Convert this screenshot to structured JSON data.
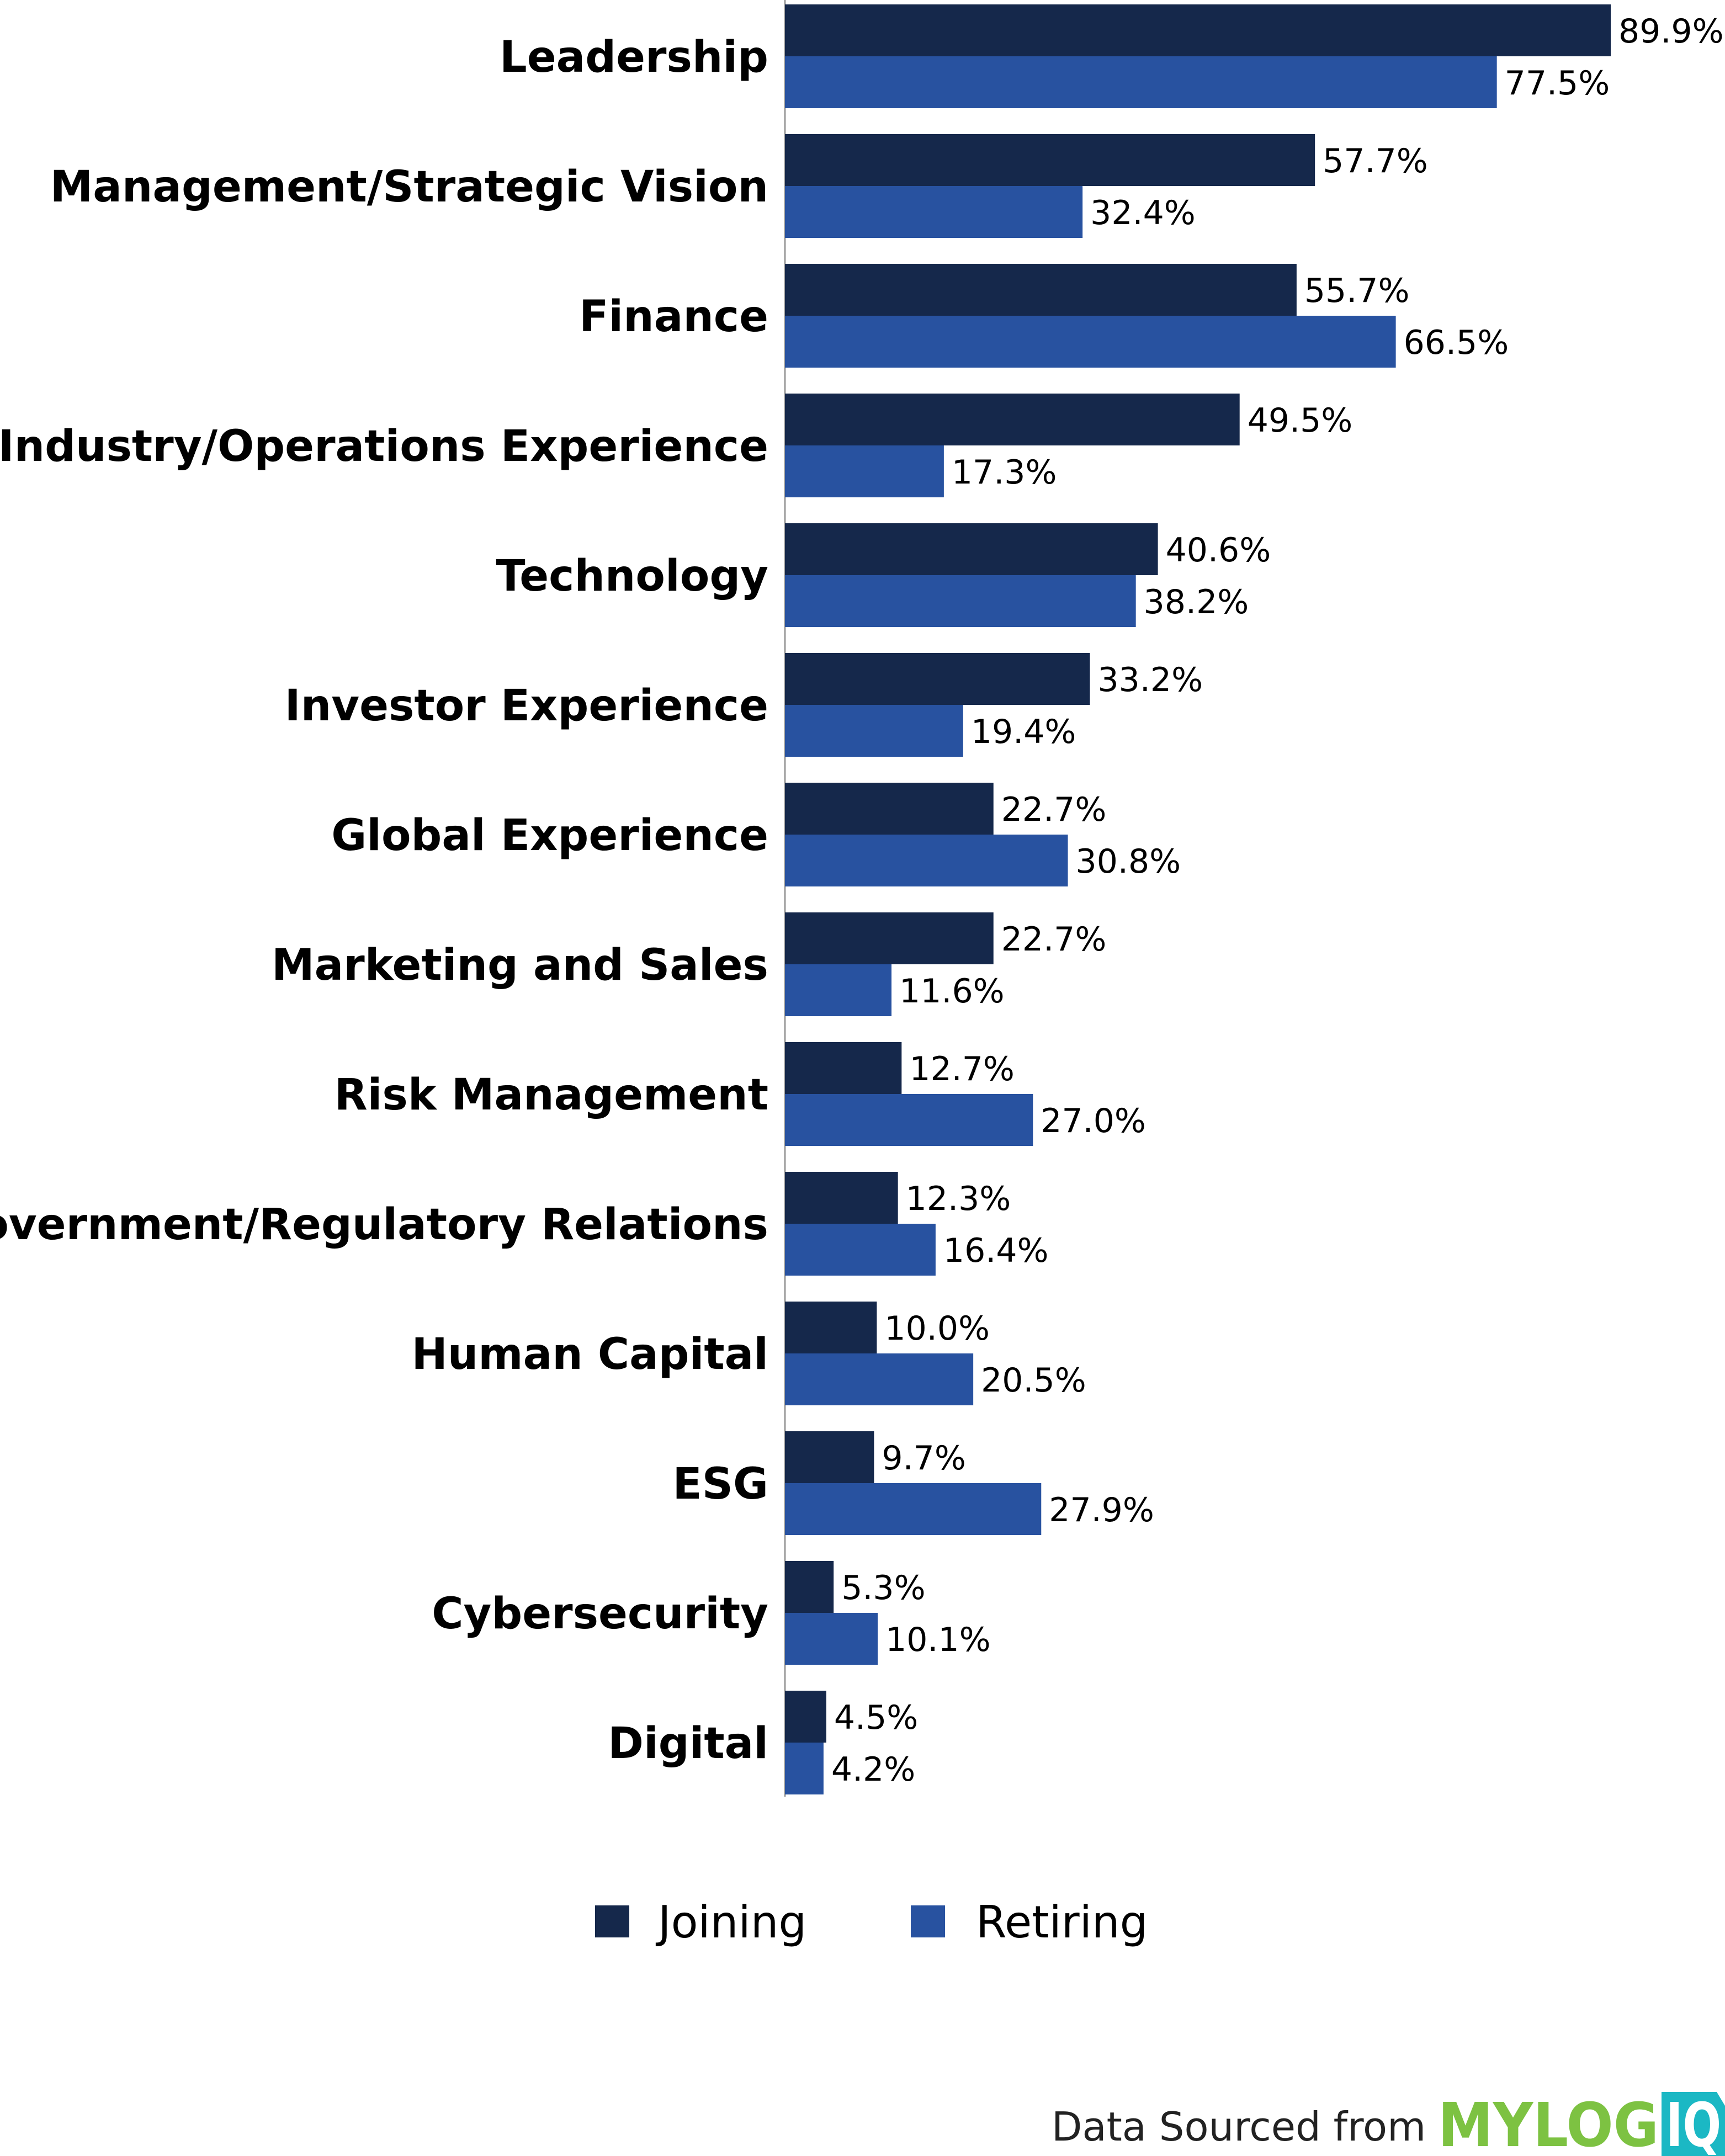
{
  "chart_data": {
    "type": "bar",
    "orientation": "horizontal",
    "categories": [
      "Leadership",
      "Management/Strategic Vision",
      "Finance",
      "Industry/Operations Experience",
      "Technology",
      "Investor Experience",
      "Global Experience",
      "Marketing and Sales",
      "Risk Management",
      "Government/Regulatory Relations",
      "Human Capital",
      "ESG",
      "Cybersecurity",
      "Digital"
    ],
    "series": [
      {
        "name": "Joining",
        "color": "#15284b",
        "values": [
          89.9,
          57.7,
          55.7,
          49.5,
          40.6,
          33.2,
          22.7,
          22.7,
          12.7,
          12.3,
          10.0,
          9.7,
          5.3,
          4.5
        ]
      },
      {
        "name": "Retiring",
        "color": "#2852a0",
        "values": [
          77.5,
          32.4,
          66.5,
          17.3,
          38.2,
          19.4,
          30.8,
          11.6,
          27.0,
          16.4,
          20.5,
          27.9,
          10.1,
          4.2
        ]
      }
    ],
    "value_format": "percent_1dp",
    "xlim": [
      0,
      90
    ],
    "grid": false,
    "legend_position": "bottom"
  },
  "source": {
    "text": "Data Sourced from",
    "logo_text": "MYLOGIQ",
    "logo_colors": {
      "mylog": "#7dc242",
      "iq": "#1bb8c4"
    }
  }
}
